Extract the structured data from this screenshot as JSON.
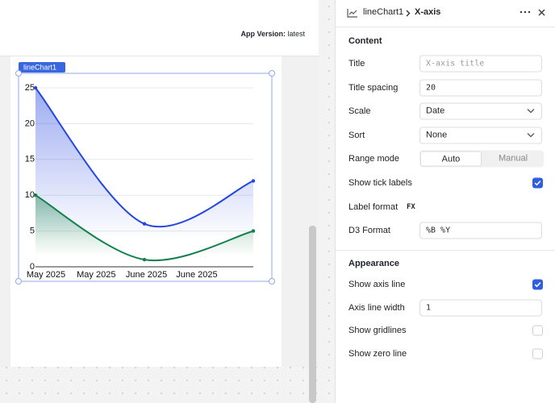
{
  "app": {
    "version_label": "App Version:",
    "version": "latest"
  },
  "widget": {
    "name": "lineChart1"
  },
  "chart_data": {
    "type": "line",
    "xtick_labels": [
      "May 2025",
      "May 2025",
      "June 2025",
      "June 2025"
    ],
    "series": [
      {
        "color": "#2446e0",
        "values": [
          25,
          6,
          12
        ]
      },
      {
        "color": "#12804a",
        "values": [
          10,
          1,
          5
        ]
      }
    ],
    "ylim": [
      0,
      25
    ],
    "yticks": [
      0,
      5,
      10,
      15,
      20,
      25
    ],
    "grid": true
  },
  "panel": {
    "breadcrumb": [
      "lineChart1",
      "X-axis"
    ],
    "sections": [
      {
        "title": "Content",
        "fields": [
          {
            "label": "Title",
            "kind": "input",
            "placeholder": "X-axis title"
          },
          {
            "label": "Title spacing",
            "kind": "input",
            "value": "20"
          },
          {
            "label": "Scale",
            "kind": "select",
            "value": "Date"
          },
          {
            "label": "Sort",
            "kind": "select",
            "value": "None"
          },
          {
            "label": "Range mode",
            "kind": "segmented",
            "options": [
              "Auto",
              "Manual"
            ],
            "selected": 0
          },
          {
            "label": "Show tick labels",
            "kind": "checkbox",
            "checked": true
          },
          {
            "label": "Label format",
            "kind": "badge",
            "value": "FX"
          },
          {
            "label": "D3 Format",
            "kind": "input",
            "value": "%B %Y"
          }
        ]
      },
      {
        "title": "Appearance",
        "fields": [
          {
            "label": "Show axis line",
            "kind": "checkbox",
            "checked": true
          },
          {
            "label": "Axis line width",
            "kind": "input",
            "value": "1"
          },
          {
            "label": "Show gridlines",
            "kind": "checkbox",
            "checked": false
          },
          {
            "label": "Show zero line",
            "kind": "checkbox",
            "checked": false
          }
        ]
      }
    ]
  }
}
